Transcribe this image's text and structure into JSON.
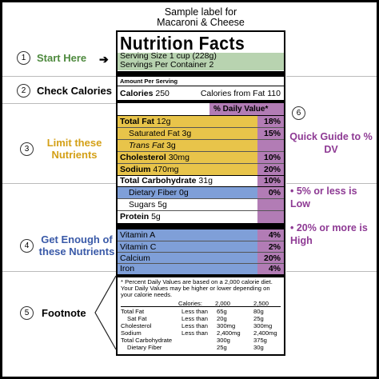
{
  "caption": {
    "line1": "Sample label for",
    "line2": "Macaroni & Cheese"
  },
  "title": "Nutrition Facts",
  "serving": {
    "size": "Serving Size 1 cup (228g)",
    "per_container": "Servings Per Container  2"
  },
  "amount_header": "Amount Per Serving",
  "calories": {
    "label": "Calories",
    "value": "250",
    "from_fat": "Calories from Fat 110"
  },
  "dv_header": "% Daily Value*",
  "limit_rows": [
    {
      "name": "Total Fat",
      "amount": "12g",
      "pct": "18%"
    },
    {
      "name": "Saturated Fat",
      "amount": "3g",
      "pct": "15%"
    },
    {
      "name": "Trans Fat",
      "amount": "3g",
      "pct": ""
    },
    {
      "name": "Cholesterol",
      "amount": "30mg",
      "pct": "10%"
    },
    {
      "name": "Sodium",
      "amount": "470mg",
      "pct": "20%"
    }
  ],
  "carb": {
    "name": "Total Carbohydrate",
    "amount": "31g",
    "pct": "10%"
  },
  "fiber": {
    "name": "Dietary Fiber",
    "amount": "0g",
    "pct": "0%"
  },
  "sugars": {
    "name": "Sugars",
    "amount": "5g"
  },
  "protein": {
    "name": "Protein",
    "amount": "5g"
  },
  "vitamins": [
    {
      "name": "Vitamin A",
      "pct": "4%"
    },
    {
      "name": "Vitamin C",
      "pct": "2%"
    },
    {
      "name": "Calcium",
      "pct": "20%"
    },
    {
      "name": "Iron",
      "pct": "4%"
    }
  ],
  "footnote": {
    "l1": "* Percent Daily Values are based on a 2,000 calorie diet.",
    "l2": "Your Daily Values may be higher or lower depending on",
    "l3": "your calorie needs.",
    "calories_label": "Calories:",
    "c1": "2,000",
    "c2": "2,500",
    "rows": [
      {
        "n": "Total Fat",
        "q": "Less than",
        "a": "65g",
        "b": "80g"
      },
      {
        "n": "Sat Fat",
        "q": "Less than",
        "a": "20g",
        "b": "25g"
      },
      {
        "n": "Cholesterol",
        "q": "Less than",
        "a": "300mg",
        "b": "300mg"
      },
      {
        "n": "Sodium",
        "q": "Less than",
        "a": "2,400mg",
        "b": "2,400mg"
      },
      {
        "n": "Total Carbohydrate",
        "q": "",
        "a": "300g",
        "b": "375g"
      },
      {
        "n": "Dietary Fiber",
        "q": "",
        "a": "25g",
        "b": "30g"
      }
    ]
  },
  "steps": [
    {
      "num": "1",
      "label": "Start Here",
      "color": "#4e8a3e"
    },
    {
      "num": "2",
      "label": "Check Calories",
      "color": "#000000"
    },
    {
      "num": "3",
      "label": "Limit these Nutrients",
      "color": "#d4a017"
    },
    {
      "num": "4",
      "label": "Get Enough of these Nutrients",
      "color": "#3a5aa8"
    },
    {
      "num": "5",
      "label": "Footnote",
      "color": "#000000"
    },
    {
      "num": "6",
      "label": "Quick Guide to % DV",
      "color": "#8e3a94"
    }
  ],
  "guide": {
    "low": "• 5% or less is Low",
    "high": "• 20% or more is High"
  },
  "colors": {
    "green": "#b8d3b0",
    "yellow": "#e8c44a",
    "blue": "#7f9fd8",
    "purple": "#b27cb5"
  }
}
